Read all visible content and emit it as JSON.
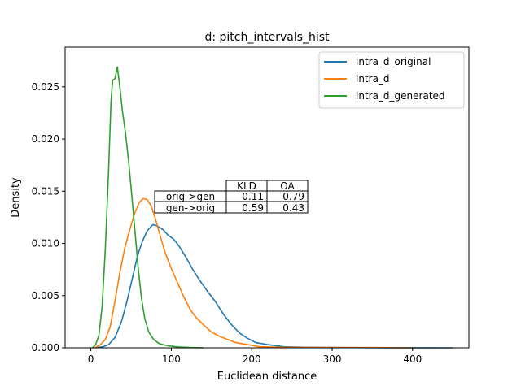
{
  "chart_data": {
    "type": "line",
    "title": "d: pitch_intervals_hist",
    "xlabel": "Euclidean distance",
    "ylabel": "Density",
    "xlim": [
      -32,
      470
    ],
    "ylim": [
      0,
      0.0288
    ],
    "x_ticks": [
      0,
      100,
      200,
      300,
      400
    ],
    "x_tick_labels": [
      "0",
      "100",
      "200",
      "300",
      "400"
    ],
    "y_ticks": [
      0,
      0.005,
      0.01,
      0.015,
      0.02,
      0.025
    ],
    "y_tick_labels": [
      "0.000",
      "0.005",
      "0.010",
      "0.015",
      "0.020",
      "0.025"
    ],
    "grid": false,
    "legend_position": "top-right",
    "series": [
      {
        "name": "intra_d_original",
        "color": "#1f77b4",
        "points": [
          [
            5,
            0
          ],
          [
            15,
            0.0001
          ],
          [
            22,
            0.0003
          ],
          [
            30,
            0.001
          ],
          [
            38,
            0.0025
          ],
          [
            45,
            0.0045
          ],
          [
            52,
            0.0068
          ],
          [
            58,
            0.0088
          ],
          [
            64,
            0.0102
          ],
          [
            70,
            0.0112
          ],
          [
            77,
            0.0118
          ],
          [
            82,
            0.0117
          ],
          [
            90,
            0.0113
          ],
          [
            96,
            0.0108
          ],
          [
            103,
            0.0104
          ],
          [
            110,
            0.0097
          ],
          [
            118,
            0.0087
          ],
          [
            126,
            0.0076
          ],
          [
            135,
            0.0065
          ],
          [
            145,
            0.0054
          ],
          [
            155,
            0.0044
          ],
          [
            165,
            0.0032
          ],
          [
            175,
            0.0022
          ],
          [
            185,
            0.0014
          ],
          [
            195,
            0.0009
          ],
          [
            205,
            0.0005
          ],
          [
            220,
            0.0003
          ],
          [
            240,
            0.0001
          ],
          [
            270,
            5e-05
          ],
          [
            320,
            2e-05
          ],
          [
            380,
            1e-05
          ],
          [
            450,
            0
          ]
        ]
      },
      {
        "name": "intra_d",
        "color": "#ff7f0e",
        "points": [
          [
            5,
            0
          ],
          [
            12,
            0.0003
          ],
          [
            18,
            0.0008
          ],
          [
            24,
            0.002
          ],
          [
            30,
            0.0045
          ],
          [
            36,
            0.0072
          ],
          [
            42,
            0.0095
          ],
          [
            48,
            0.0112
          ],
          [
            54,
            0.0128
          ],
          [
            60,
            0.0139
          ],
          [
            65,
            0.0143
          ],
          [
            70,
            0.0142
          ],
          [
            75,
            0.0136
          ],
          [
            80,
            0.0124
          ],
          [
            86,
            0.0108
          ],
          [
            92,
            0.0092
          ],
          [
            100,
            0.0076
          ],
          [
            108,
            0.0062
          ],
          [
            116,
            0.0048
          ],
          [
            124,
            0.0036
          ],
          [
            132,
            0.0028
          ],
          [
            140,
            0.0022
          ],
          [
            150,
            0.0015
          ],
          [
            160,
            0.0011
          ],
          [
            170,
            0.0008
          ],
          [
            180,
            0.0005
          ],
          [
            195,
            0.0003
          ],
          [
            210,
            0.0001
          ],
          [
            240,
            5e-05
          ],
          [
            300,
            2e-05
          ],
          [
            350,
            2e-05
          ],
          [
            400,
            0
          ]
        ]
      },
      {
        "name": "intra_d_generated",
        "color": "#2ca02c",
        "points": [
          [
            2,
            0
          ],
          [
            6,
            0.0003
          ],
          [
            10,
            0.0012
          ],
          [
            14,
            0.004
          ],
          [
            18,
            0.0095
          ],
          [
            22,
            0.017
          ],
          [
            25,
            0.0235
          ],
          [
            27,
            0.0256
          ],
          [
            30,
            0.0258
          ],
          [
            33,
            0.0269
          ],
          [
            36,
            0.025
          ],
          [
            39,
            0.0228
          ],
          [
            43,
            0.0206
          ],
          [
            47,
            0.0178
          ],
          [
            51,
            0.0145
          ],
          [
            55,
            0.011
          ],
          [
            59,
            0.0075
          ],
          [
            63,
            0.0047
          ],
          [
            67,
            0.0028
          ],
          [
            72,
            0.0015
          ],
          [
            78,
            0.0008
          ],
          [
            85,
            0.0004
          ],
          [
            95,
            0.0002
          ],
          [
            110,
            8e-05
          ],
          [
            125,
            2e-05
          ],
          [
            140,
            0
          ]
        ]
      }
    ],
    "inset_table": {
      "col_labels": [
        "KLD",
        "OA"
      ],
      "rows": [
        {
          "label": "orig->gen",
          "values": [
            "0.11",
            "0.79"
          ]
        },
        {
          "label": "gen->orig",
          "values": [
            "0.59",
            "0.43"
          ]
        }
      ]
    }
  }
}
